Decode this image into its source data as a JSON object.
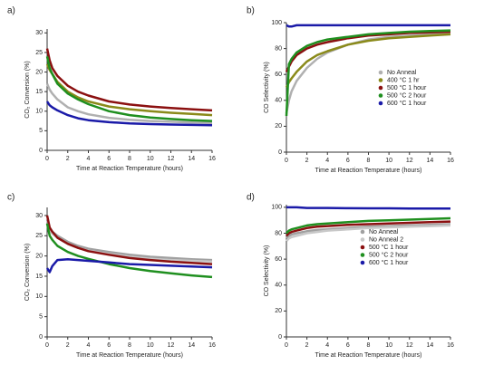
{
  "chart_data": [
    {
      "type": "line",
      "title": "a)",
      "xlabel": "Time at Reaction Temperature (hours)",
      "ylabel": "CO₂ Conversion (%)",
      "x": [
        0,
        0.25,
        0.5,
        1,
        2,
        3,
        4,
        6,
        8,
        10,
        12,
        14,
        16
      ],
      "xlim": [
        0,
        16
      ],
      "xticks": [
        0,
        2,
        4,
        6,
        8,
        10,
        12,
        14,
        16
      ],
      "ylim": [
        0,
        31
      ],
      "yticks": [
        0,
        5,
        10,
        15,
        20,
        25,
        30
      ],
      "series": [
        {
          "color": "#b0b0b0",
          "values": [
            17,
            15.5,
            14.5,
            13,
            11,
            10,
            9.2,
            8.3,
            7.8,
            7.5,
            7.3,
            7.1,
            7.0
          ]
        },
        {
          "color": "#8a8a1a",
          "values": [
            22,
            20.5,
            19.5,
            17.5,
            15,
            13.5,
            12.5,
            11.2,
            10.5,
            10,
            9.6,
            9.3,
            9.0
          ]
        },
        {
          "color": "#8b1010",
          "values": [
            26,
            23,
            21,
            19,
            16.5,
            15,
            14,
            12.5,
            11.7,
            11.2,
            10.8,
            10.5,
            10.2
          ]
        },
        {
          "color": "#1f8f1f",
          "values": [
            24,
            21,
            19.5,
            17,
            14.5,
            13,
            11.8,
            10,
            9,
            8.4,
            8,
            7.7,
            7.5
          ]
        },
        {
          "color": "#1a1aa8",
          "values": [
            12.5,
            11.5,
            11,
            10.2,
            9,
            8.2,
            7.7,
            7.2,
            6.9,
            6.7,
            6.6,
            6.5,
            6.4
          ]
        }
      ]
    },
    {
      "type": "line",
      "title": "b)",
      "xlabel": "Time at Reaction Temperature (hours)",
      "ylabel": "CO Selectivity (%)",
      "x": [
        0,
        0.25,
        0.5,
        1,
        2,
        3,
        4,
        6,
        8,
        10,
        12,
        14,
        16
      ],
      "xlim": [
        0,
        16
      ],
      "xticks": [
        0,
        2,
        4,
        6,
        8,
        10,
        12,
        14,
        16
      ],
      "ylim": [
        0,
        100
      ],
      "yticks": [
        0,
        20,
        40,
        60,
        80,
        100
      ],
      "legend": true,
      "series": [
        {
          "name": "No Anneal",
          "color": "#b0b0b0",
          "values": [
            30,
            40,
            47,
            55,
            65,
            72,
            77,
            83,
            87,
            89,
            90,
            91,
            92
          ]
        },
        {
          "name": "400 °C 1 hr",
          "color": "#8a8a1a",
          "values": [
            50,
            54,
            57,
            62,
            70,
            75,
            78,
            83,
            86,
            88,
            89,
            90,
            91
          ]
        },
        {
          "name": "500 °C 1 hour",
          "color": "#8b1010",
          "values": [
            62,
            66,
            70,
            75,
            80,
            83,
            85,
            88,
            90,
            91,
            92,
            92.5,
            93
          ]
        },
        {
          "name": "500 °C 2 hour",
          "color": "#1f8f1f",
          "values": [
            28,
            68,
            72,
            77,
            82,
            85,
            87,
            89,
            91,
            92,
            93,
            93.5,
            94
          ]
        },
        {
          "name": "600 °C 1 hour",
          "color": "#1a1aa8",
          "values": [
            98,
            97,
            97,
            98,
            98,
            98,
            98,
            98,
            98,
            98,
            98,
            98,
            98
          ]
        }
      ]
    },
    {
      "type": "line",
      "title": "c)",
      "xlabel": "Time at Reaction Temperature (hours)",
      "ylabel": "CO₂ Conversion (%)",
      "x": [
        0,
        0.25,
        0.5,
        1,
        2,
        3,
        4,
        6,
        8,
        10,
        12,
        14,
        16
      ],
      "xlim": [
        0,
        16
      ],
      "xticks": [
        0,
        2,
        4,
        6,
        8,
        10,
        12,
        14,
        16
      ],
      "ylim": [
        0,
        32
      ],
      "yticks": [
        0,
        5,
        10,
        15,
        20,
        25,
        30
      ],
      "series": [
        {
          "color": "#a0a0a0",
          "values": [
            29,
            27,
            26,
            25,
            23.5,
            22.5,
            21.8,
            21,
            20.3,
            19.8,
            19.5,
            19.2,
            19
          ]
        },
        {
          "color": "#c8c8c8",
          "values": [
            28,
            26.5,
            25.5,
            24.5,
            23,
            22,
            21.3,
            20.5,
            19.8,
            19.3,
            19,
            18.8,
            18.6
          ]
        },
        {
          "color": "#8b1010",
          "values": [
            30,
            27,
            26,
            24.5,
            23,
            22,
            21.2,
            20.3,
            19.5,
            19,
            18.6,
            18.3,
            18
          ]
        },
        {
          "color": "#1f8f1f",
          "values": [
            28,
            25,
            24,
            22.5,
            21,
            20,
            19.3,
            18,
            17,
            16.3,
            15.7,
            15.2,
            14.8
          ]
        },
        {
          "color": "#1a1aa8",
          "values": [
            17,
            16,
            17.5,
            19,
            19.2,
            19,
            18.8,
            18.4,
            18,
            17.8,
            17.6,
            17.4,
            17.2
          ]
        }
      ]
    },
    {
      "type": "line",
      "title": "d)",
      "xlabel": "Time at Reaction Temperature (hours)",
      "ylabel": "CO Selectivity (%)",
      "x": [
        0,
        0.25,
        0.5,
        1,
        2,
        3,
        4,
        6,
        8,
        10,
        12,
        14,
        16
      ],
      "xlim": [
        0,
        16
      ],
      "xticks": [
        0,
        2,
        4,
        6,
        8,
        10,
        12,
        14,
        16
      ],
      "ylim": [
        0,
        102
      ],
      "yticks": [
        0,
        20,
        40,
        60,
        80,
        100
      ],
      "legend": true,
      "series": [
        {
          "name": "No Anneal",
          "color": "#a0a0a0",
          "values": [
            76,
            78,
            79,
            80,
            81.5,
            82.5,
            83,
            84,
            85,
            85.5,
            86,
            86.5,
            87
          ]
        },
        {
          "name": "No Anneal 2",
          "color": "#c8c8c8",
          "values": [
            74,
            76,
            77,
            78,
            80,
            81,
            82,
            83,
            84,
            84.5,
            85,
            85.5,
            86
          ]
        },
        {
          "name": "500 °C 1 hour",
          "color": "#8b1010",
          "values": [
            78,
            80,
            81,
            82,
            84,
            85,
            85.5,
            86.5,
            87,
            87.5,
            88,
            88.5,
            89
          ]
        },
        {
          "name": "500 °C 2 hour",
          "color": "#1f8f1f",
          "values": [
            80,
            82,
            83,
            84,
            86,
            87,
            87.5,
            88.5,
            89.5,
            90,
            90.5,
            91,
            91.5
          ]
        },
        {
          "name": "600 °C 1 hour",
          "color": "#1a1aa8",
          "values": [
            100,
            100,
            100,
            100,
            99.5,
            99.5,
            99.5,
            99.3,
            99.2,
            99.2,
            99,
            99,
            99
          ]
        }
      ]
    }
  ]
}
